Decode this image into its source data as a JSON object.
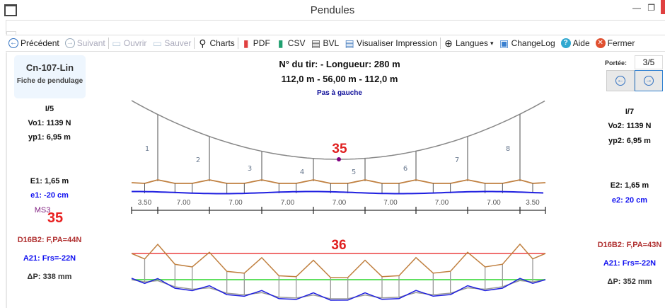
{
  "window": {
    "title": "Pendules"
  },
  "toolbar": [
    {
      "label": "Précédent",
      "icon": "arrow-left-circle-icon",
      "enabled": true
    },
    {
      "label": "Suivant",
      "icon": "arrow-right-circle-icon",
      "enabled": false
    },
    {
      "label": "Ouvrir",
      "icon": "folder-icon",
      "enabled": false
    },
    {
      "label": "Sauver",
      "icon": "save-icon",
      "enabled": false
    },
    {
      "label": "Charts",
      "icon": "magnifier-icon",
      "enabled": true
    },
    {
      "label": "PDF",
      "icon": "pdf-icon",
      "enabled": true
    },
    {
      "label": "CSV",
      "icon": "csv-icon",
      "enabled": true
    },
    {
      "label": "BVL",
      "icon": "bvl-icon",
      "enabled": true
    },
    {
      "label": "Visualiser Impression",
      "icon": "printer-icon",
      "enabled": true
    },
    {
      "label": "Langues",
      "icon": "globe-icon",
      "enabled": true
    },
    {
      "label": "ChangeLog",
      "icon": "gift-icon",
      "enabled": true
    },
    {
      "label": "Aide",
      "icon": "help-icon",
      "enabled": true
    },
    {
      "label": "Fermer",
      "icon": "close-circle-icon",
      "enabled": true
    }
  ],
  "card": {
    "name": "Cn-107-Lin",
    "subtitle": "Fiche de pendulage"
  },
  "header": {
    "line1": "N° du tir:  - Longueur: 280 m",
    "line2": "112,0 m - 56,00 m - 112,0 m",
    "line3": "Pas à gauche"
  },
  "left": {
    "i": "I/5",
    "vo": "Vo1: 1139 N",
    "yp": "yp1: 6,95 m",
    "E": "E1: 1,65 m",
    "e": "e1: -20 cm",
    "ms": "MS3",
    "num": "35",
    "d16": "D16B2: F,PA=44N",
    "a21": "A21: Frs=-22N",
    "dp": "ΔP: 338 mm"
  },
  "right": {
    "portee_label": "Portée:",
    "portee_value": "3/5",
    "i": "I/7",
    "vo": "Vo2: 1139 N",
    "yp": "yp2: 6,95 m",
    "E": "E2: 1,65 m",
    "e": "e2: 20 cm",
    "d16": "D16B2: F,PA=43N",
    "a21": "A21: Frs=-22N",
    "dp": "ΔP: 352 mm"
  },
  "diagram": {
    "dropper_labels": [
      "1",
      "2",
      "3",
      "4",
      "5",
      "6",
      "7",
      "8"
    ],
    "span_labels": [
      "3.50",
      "7.00",
      "7.00",
      "7.00",
      "7.00",
      "7.00",
      "7.00",
      "7.00",
      "3.50"
    ],
    "center_label": "35",
    "lower_label": "36",
    "colors": {
      "messenger": "#888888",
      "contact": "#c08040",
      "blue": "#2020e0",
      "red": "#f07070",
      "green": "#60e060",
      "accent": "#e02020",
      "purple": "#800080"
    }
  }
}
